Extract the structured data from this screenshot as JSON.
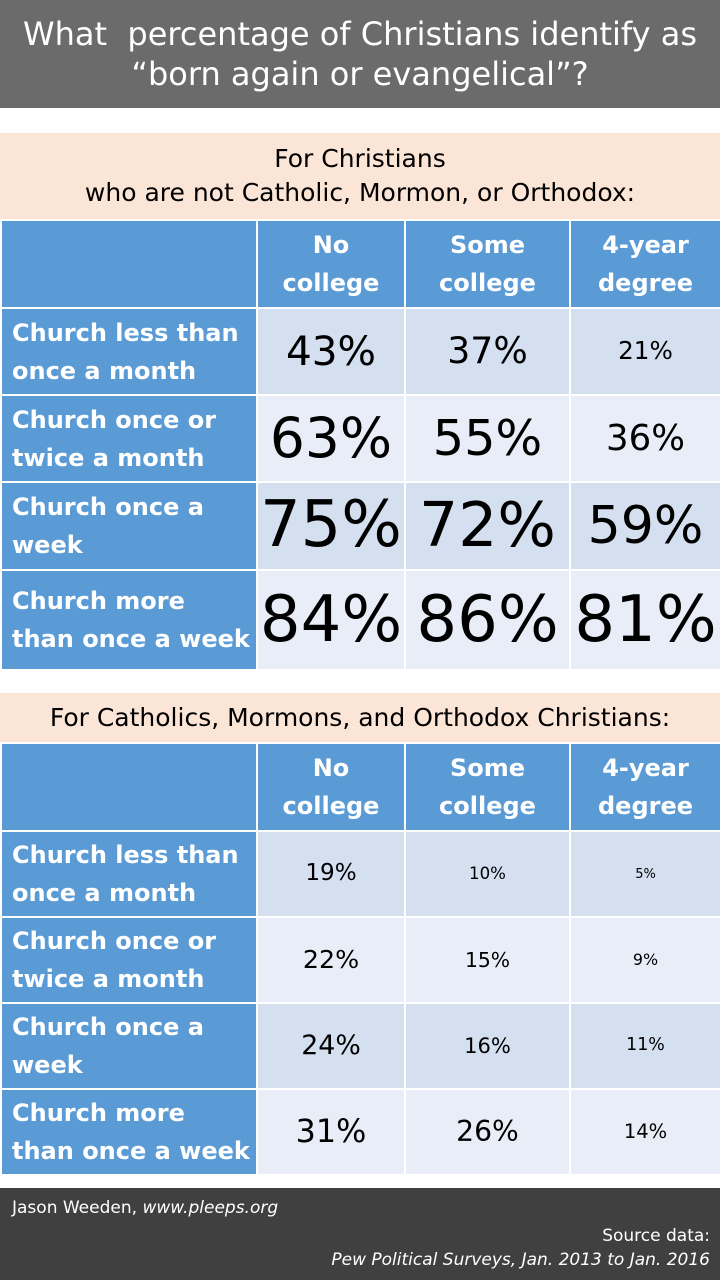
{
  "title": {
    "line1": "What  percentage of Christians identify as",
    "line2": "“born again or evangelical”?"
  },
  "chart_data": [
    {
      "type": "table",
      "title_line1": "For Christians",
      "title_line2": "who are not Catholic, Mormon, or Orthodox:",
      "columns": [
        {
          "line1": "No",
          "line2": "college"
        },
        {
          "line1": "Some",
          "line2": "college"
        },
        {
          "line1": "4-year",
          "line2": "degree"
        }
      ],
      "rows": [
        {
          "label_line1": "Church less than",
          "label_line2": "once a month",
          "cells": [
            "43%",
            "37%",
            "21%"
          ]
        },
        {
          "label_line1": "Church once or",
          "label_line2": "twice a month",
          "cells": [
            "63%",
            "55%",
            "36%"
          ]
        },
        {
          "label_line1": "Church once a",
          "label_line2": "week",
          "cells": [
            "75%",
            "72%",
            "59%"
          ]
        },
        {
          "label_line1": "Church more",
          "label_line2": "than once a week",
          "cells": [
            "84%",
            "86%",
            "81%"
          ]
        }
      ],
      "values": [
        [
          43,
          37,
          21
        ],
        [
          63,
          55,
          36
        ],
        [
          75,
          72,
          59
        ],
        [
          84,
          86,
          81
        ]
      ]
    },
    {
      "type": "table",
      "title_line1": "For Catholics, Mormons, and Orthodox Christians:",
      "title_line2": "",
      "columns": [
        {
          "line1": "No",
          "line2": "college"
        },
        {
          "line1": "Some",
          "line2": "college"
        },
        {
          "line1": "4-year",
          "line2": "degree"
        }
      ],
      "rows": [
        {
          "label_line1": "Church less than",
          "label_line2": "once a month",
          "cells": [
            "19%",
            "10%",
            "5%"
          ]
        },
        {
          "label_line1": "Church once or",
          "label_line2": "twice a month",
          "cells": [
            "22%",
            "15%",
            "9%"
          ]
        },
        {
          "label_line1": "Church once a",
          "label_line2": "week",
          "cells": [
            "24%",
            "16%",
            "11%"
          ]
        },
        {
          "label_line1": "Church more",
          "label_line2": "than once a week",
          "cells": [
            "31%",
            "26%",
            "14%"
          ]
        }
      ],
      "values": [
        [
          19,
          10,
          5
        ],
        [
          22,
          15,
          9
        ],
        [
          24,
          16,
          11
        ],
        [
          31,
          26,
          14
        ]
      ]
    }
  ],
  "footer": {
    "author": "Jason Weeden,",
    "site": "www.pleeps.org",
    "source_label": "Source data:",
    "source": "Pew Political Surveys,  Jan. 2013 to Jan. 2016"
  }
}
